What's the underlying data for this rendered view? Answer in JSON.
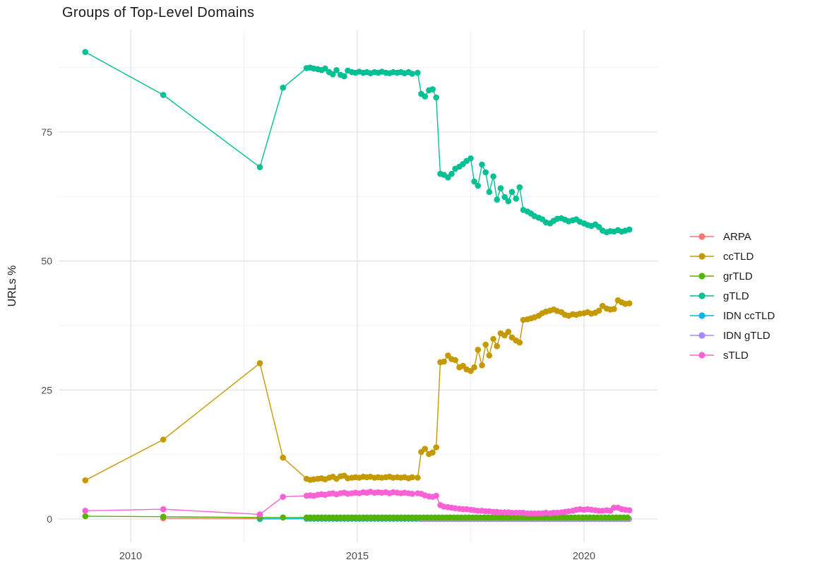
{
  "title": "Groups of Top-Level Domains",
  "chart_data": {
    "type": "scatter",
    "title": "Groups of Top-Level Domains",
    "xlabel": "",
    "ylabel": "URLs %",
    "x_ticks": [
      2010,
      2015,
      2020
    ],
    "x_minor": [
      2012.5,
      2017.5
    ],
    "y_ticks": [
      0,
      25,
      50,
      75
    ],
    "y_minor": [
      12.5,
      37.5,
      62.5,
      87.5
    ],
    "xlim": [
      2008.4,
      2021.6
    ],
    "ylim": [
      -4.5,
      95
    ],
    "grid": true,
    "legend_position": "right",
    "draw_order": [
      "ARPA",
      "IDN ccTLD",
      "IDN gTLD",
      "ccTLD",
      "grTLD",
      "gTLD",
      "sTLD"
    ],
    "series": [
      {
        "name": "ARPA",
        "color": "#F8766D",
        "points": [
          [
            2010.72,
            0.15
          ],
          [
            2012.85,
            0.08
          ]
        ],
        "dense": {
          "from": 2013.88,
          "to": 2021.0,
          "step": 0.0833,
          "value": 0.05
        }
      },
      {
        "name": "ccTLD",
        "color": "#C49A00",
        "points": [
          [
            2009.0,
            7.5
          ],
          [
            2010.72,
            15.4
          ],
          [
            2012.85,
            30.2
          ],
          [
            2013.36,
            11.9
          ],
          [
            2013.88,
            7.8
          ],
          [
            2013.96,
            7.6
          ],
          [
            2014.04,
            7.7
          ],
          [
            2014.13,
            7.8
          ],
          [
            2014.21,
            7.9
          ],
          [
            2014.29,
            7.7
          ],
          [
            2014.38,
            8.0
          ],
          [
            2014.46,
            8.2
          ],
          [
            2014.54,
            7.8
          ],
          [
            2014.63,
            8.3
          ],
          [
            2014.71,
            8.4
          ],
          [
            2014.79,
            7.9
          ],
          [
            2014.88,
            8.0
          ],
          [
            2014.96,
            8.1
          ],
          [
            2015.04,
            8.0
          ],
          [
            2015.13,
            8.2
          ],
          [
            2015.21,
            8.1
          ],
          [
            2015.29,
            8.2
          ],
          [
            2015.38,
            8.0
          ],
          [
            2015.46,
            8.1
          ],
          [
            2015.54,
            8.0
          ],
          [
            2015.63,
            8.1
          ],
          [
            2015.71,
            8.2
          ],
          [
            2015.79,
            8.0
          ],
          [
            2015.88,
            8.1
          ],
          [
            2015.96,
            8.0
          ],
          [
            2016.04,
            8.1
          ],
          [
            2016.13,
            7.9
          ],
          [
            2016.21,
            8.1
          ],
          [
            2016.33,
            8.0
          ],
          [
            2016.41,
            13.0
          ],
          [
            2016.49,
            13.6
          ],
          [
            2016.58,
            12.6
          ],
          [
            2016.66,
            12.9
          ],
          [
            2016.74,
            13.9
          ],
          [
            2016.83,
            30.4
          ],
          [
            2016.91,
            30.5
          ],
          [
            2017.0,
            31.7
          ],
          [
            2017.08,
            31.0
          ],
          [
            2017.16,
            30.8
          ],
          [
            2017.25,
            29.4
          ],
          [
            2017.33,
            29.7
          ],
          [
            2017.41,
            29.0
          ],
          [
            2017.5,
            28.7
          ],
          [
            2017.58,
            29.4
          ],
          [
            2017.66,
            32.8
          ],
          [
            2017.75,
            29.8
          ],
          [
            2017.83,
            33.8
          ],
          [
            2017.91,
            31.7
          ],
          [
            2018.0,
            34.9
          ],
          [
            2018.08,
            33.5
          ],
          [
            2018.16,
            36.0
          ],
          [
            2018.25,
            35.6
          ],
          [
            2018.33,
            36.3
          ],
          [
            2018.41,
            35.2
          ],
          [
            2018.5,
            34.6
          ],
          [
            2018.58,
            34.2
          ],
          [
            2018.66,
            38.6
          ],
          [
            2018.75,
            38.7
          ],
          [
            2018.83,
            38.9
          ],
          [
            2018.91,
            39.1
          ],
          [
            2019.0,
            39.4
          ],
          [
            2019.08,
            39.9
          ],
          [
            2019.16,
            40.2
          ],
          [
            2019.25,
            40.4
          ],
          [
            2019.33,
            40.6
          ],
          [
            2019.41,
            40.3
          ],
          [
            2019.5,
            40.1
          ],
          [
            2019.58,
            39.6
          ],
          [
            2019.66,
            39.4
          ],
          [
            2019.75,
            39.7
          ],
          [
            2019.83,
            39.6
          ],
          [
            2019.91,
            39.8
          ],
          [
            2020.0,
            39.9
          ],
          [
            2020.08,
            40.1
          ],
          [
            2020.16,
            39.8
          ],
          [
            2020.25,
            40.0
          ],
          [
            2020.33,
            40.4
          ],
          [
            2020.41,
            41.3
          ],
          [
            2020.5,
            40.8
          ],
          [
            2020.58,
            40.6
          ],
          [
            2020.66,
            40.7
          ],
          [
            2020.75,
            42.4
          ],
          [
            2020.83,
            42.0
          ],
          [
            2020.91,
            41.7
          ],
          [
            2021.0,
            41.8
          ]
        ]
      },
      {
        "name": "grTLD",
        "color": "#53B400",
        "points": [
          [
            2009.0,
            0.55
          ],
          [
            2010.72,
            0.45
          ],
          [
            2012.85,
            0.3
          ],
          [
            2013.36,
            0.3
          ]
        ],
        "dense": {
          "from": 2013.88,
          "to": 2021.0,
          "step": 0.0833,
          "value": 0.3
        }
      },
      {
        "name": "gTLD",
        "color": "#00C094",
        "points": [
          [
            2009.0,
            90.5
          ],
          [
            2010.72,
            82.2
          ],
          [
            2012.85,
            68.2
          ],
          [
            2013.36,
            83.6
          ],
          [
            2013.88,
            87.4
          ],
          [
            2013.96,
            87.5
          ],
          [
            2014.04,
            87.3
          ],
          [
            2014.13,
            87.2
          ],
          [
            2014.21,
            87.0
          ],
          [
            2014.29,
            87.3
          ],
          [
            2014.38,
            86.6
          ],
          [
            2014.46,
            86.2
          ],
          [
            2014.54,
            87.0
          ],
          [
            2014.63,
            86.1
          ],
          [
            2014.71,
            85.8
          ],
          [
            2014.79,
            86.9
          ],
          [
            2014.88,
            86.6
          ],
          [
            2014.96,
            86.5
          ],
          [
            2015.04,
            86.7
          ],
          [
            2015.13,
            86.5
          ],
          [
            2015.21,
            86.6
          ],
          [
            2015.29,
            86.4
          ],
          [
            2015.38,
            86.6
          ],
          [
            2015.46,
            86.5
          ],
          [
            2015.54,
            86.7
          ],
          [
            2015.63,
            86.5
          ],
          [
            2015.71,
            86.4
          ],
          [
            2015.79,
            86.6
          ],
          [
            2015.88,
            86.5
          ],
          [
            2015.96,
            86.6
          ],
          [
            2016.04,
            86.4
          ],
          [
            2016.13,
            86.6
          ],
          [
            2016.21,
            86.3
          ],
          [
            2016.33,
            86.5
          ],
          [
            2016.41,
            82.4
          ],
          [
            2016.49,
            81.9
          ],
          [
            2016.58,
            83.1
          ],
          [
            2016.66,
            83.3
          ],
          [
            2016.74,
            81.7
          ],
          [
            2016.83,
            66.9
          ],
          [
            2016.91,
            66.7
          ],
          [
            2017.0,
            66.2
          ],
          [
            2017.08,
            66.9
          ],
          [
            2017.16,
            67.9
          ],
          [
            2017.25,
            68.3
          ],
          [
            2017.33,
            68.8
          ],
          [
            2017.41,
            69.4
          ],
          [
            2017.5,
            69.9
          ],
          [
            2017.58,
            65.4
          ],
          [
            2017.66,
            64.6
          ],
          [
            2017.75,
            68.7
          ],
          [
            2017.83,
            67.2
          ],
          [
            2017.91,
            63.4
          ],
          [
            2018.0,
            66.4
          ],
          [
            2018.08,
            61.9
          ],
          [
            2018.16,
            64.1
          ],
          [
            2018.25,
            62.4
          ],
          [
            2018.33,
            61.6
          ],
          [
            2018.41,
            63.4
          ],
          [
            2018.5,
            62.1
          ],
          [
            2018.58,
            64.3
          ],
          [
            2018.66,
            59.9
          ],
          [
            2018.75,
            59.6
          ],
          [
            2018.83,
            59.2
          ],
          [
            2018.91,
            58.7
          ],
          [
            2019.0,
            58.4
          ],
          [
            2019.08,
            58.1
          ],
          [
            2019.16,
            57.5
          ],
          [
            2019.25,
            57.3
          ],
          [
            2019.33,
            57.8
          ],
          [
            2019.41,
            58.2
          ],
          [
            2019.5,
            58.3
          ],
          [
            2019.58,
            58.0
          ],
          [
            2019.66,
            57.7
          ],
          [
            2019.75,
            57.9
          ],
          [
            2019.83,
            58.1
          ],
          [
            2019.91,
            57.6
          ],
          [
            2020.0,
            57.3
          ],
          [
            2020.08,
            57.0
          ],
          [
            2020.16,
            56.8
          ],
          [
            2020.25,
            57.1
          ],
          [
            2020.33,
            56.6
          ],
          [
            2020.41,
            55.9
          ],
          [
            2020.5,
            55.6
          ],
          [
            2020.58,
            55.8
          ],
          [
            2020.66,
            55.7
          ],
          [
            2020.75,
            56.0
          ],
          [
            2020.83,
            55.7
          ],
          [
            2020.91,
            55.9
          ],
          [
            2021.0,
            56.1
          ]
        ]
      },
      {
        "name": "IDN ccTLD",
        "color": "#00B6EB",
        "points": [
          [
            2012.85,
            0.02
          ]
        ],
        "dense": {
          "from": 2013.88,
          "to": 2021.0,
          "step": 0.0833,
          "value": 0.08
        }
      },
      {
        "name": "IDN gTLD",
        "color": "#A58AFF",
        "points": [],
        "dense": {
          "from": 2016.41,
          "to": 2021.0,
          "step": 0.0833,
          "value": 0.0
        }
      },
      {
        "name": "sTLD",
        "color": "#FB61D7",
        "points": [
          [
            2009.0,
            1.6
          ],
          [
            2010.72,
            1.9
          ],
          [
            2012.85,
            0.9
          ],
          [
            2013.36,
            4.3
          ],
          [
            2013.88,
            4.5
          ],
          [
            2013.96,
            4.6
          ],
          [
            2014.04,
            4.5
          ],
          [
            2014.13,
            4.7
          ],
          [
            2014.21,
            4.8
          ],
          [
            2014.29,
            4.7
          ],
          [
            2014.38,
            4.9
          ],
          [
            2014.46,
            5.0
          ],
          [
            2014.54,
            4.8
          ],
          [
            2014.63,
            5.0
          ],
          [
            2014.71,
            5.1
          ],
          [
            2014.79,
            4.9
          ],
          [
            2014.88,
            5.0
          ],
          [
            2014.96,
            5.1
          ],
          [
            2015.04,
            5.0
          ],
          [
            2015.13,
            5.2
          ],
          [
            2015.21,
            5.1
          ],
          [
            2015.29,
            5.3
          ],
          [
            2015.38,
            5.1
          ],
          [
            2015.46,
            5.2
          ],
          [
            2015.54,
            5.1
          ],
          [
            2015.63,
            5.2
          ],
          [
            2015.71,
            5.0
          ],
          [
            2015.79,
            5.2
          ],
          [
            2015.88,
            5.1
          ],
          [
            2015.96,
            5.0
          ],
          [
            2016.04,
            5.1
          ],
          [
            2016.13,
            5.0
          ],
          [
            2016.21,
            4.9
          ],
          [
            2016.33,
            5.0
          ],
          [
            2016.41,
            4.9
          ],
          [
            2016.49,
            4.6
          ],
          [
            2016.58,
            4.4
          ],
          [
            2016.66,
            4.3
          ],
          [
            2016.74,
            4.5
          ],
          [
            2016.83,
            2.7
          ],
          [
            2016.91,
            2.4
          ],
          [
            2017.0,
            2.3
          ],
          [
            2017.08,
            2.2
          ],
          [
            2017.16,
            2.1
          ],
          [
            2017.25,
            2.0
          ],
          [
            2017.33,
            1.9
          ],
          [
            2017.41,
            1.9
          ],
          [
            2017.5,
            1.8
          ],
          [
            2017.58,
            1.7
          ],
          [
            2017.66,
            1.6
          ],
          [
            2017.75,
            1.6
          ],
          [
            2017.83,
            1.5
          ],
          [
            2017.91,
            1.5
          ],
          [
            2018.0,
            1.4
          ],
          [
            2018.08,
            1.4
          ],
          [
            2018.16,
            1.3
          ],
          [
            2018.25,
            1.3
          ],
          [
            2018.33,
            1.3
          ],
          [
            2018.41,
            1.2
          ],
          [
            2018.5,
            1.2
          ],
          [
            2018.58,
            1.2
          ],
          [
            2018.66,
            1.2
          ],
          [
            2018.75,
            1.1
          ],
          [
            2018.83,
            1.1
          ],
          [
            2018.91,
            1.1
          ],
          [
            2019.0,
            1.1
          ],
          [
            2019.08,
            1.1
          ],
          [
            2019.16,
            1.2
          ],
          [
            2019.25,
            1.1
          ],
          [
            2019.33,
            1.2
          ],
          [
            2019.41,
            1.2
          ],
          [
            2019.5,
            1.3
          ],
          [
            2019.58,
            1.4
          ],
          [
            2019.66,
            1.5
          ],
          [
            2019.75,
            1.6
          ],
          [
            2019.83,
            1.8
          ],
          [
            2019.91,
            1.9
          ],
          [
            2020.0,
            1.8
          ],
          [
            2020.08,
            1.9
          ],
          [
            2020.16,
            1.8
          ],
          [
            2020.25,
            1.7
          ],
          [
            2020.33,
            1.6
          ],
          [
            2020.41,
            1.6
          ],
          [
            2020.5,
            1.7
          ],
          [
            2020.58,
            1.6
          ],
          [
            2020.66,
            2.2
          ],
          [
            2020.75,
            2.2
          ],
          [
            2020.83,
            1.9
          ],
          [
            2020.91,
            1.8
          ],
          [
            2021.0,
            1.7
          ]
        ]
      }
    ]
  },
  "style": {
    "grid_major_color": "#E3E3E3",
    "grid_minor_color": "#F1F1F1",
    "tick_label_color": "#4D4D4D",
    "axis_title_color": "#1a1a1a",
    "background": "#ffffff"
  }
}
